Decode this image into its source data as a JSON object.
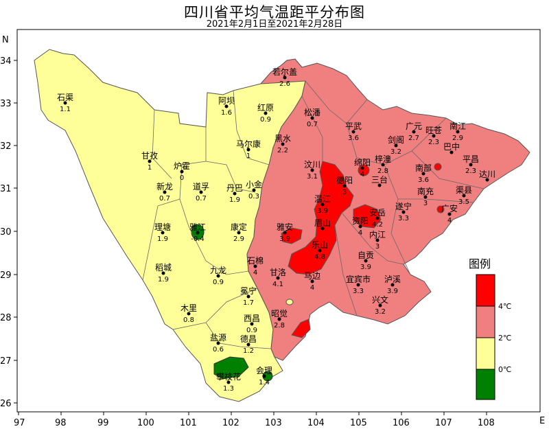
{
  "map": {
    "title": "四川省平均气温距平分布图",
    "subtitle": "2021年2月1日至2021年2月28日",
    "axis": {
      "lon_ticks": [
        "97",
        "98",
        "99",
        "100",
        "101",
        "102",
        "103",
        "104",
        "105",
        "106",
        "107",
        "108"
      ],
      "lat_ticks": [
        "34",
        "33",
        "32",
        "31",
        "30",
        "29",
        "28",
        "27",
        "26"
      ],
      "n_label": "N",
      "e_label": "E"
    },
    "legend": {
      "title": "图例",
      "labels": [
        "4℃",
        "2℃",
        "0℃"
      ],
      "colors": [
        "#ff0000",
        "#f08080",
        "#ffff99",
        "#008000"
      ]
    },
    "colors": {
      "yellow": "#ffff99",
      "pink": "#f08080",
      "red": "#ff0000",
      "green": "#008000"
    },
    "stations": [
      {
        "name": "若尔盖",
        "value": "2.6"
      },
      {
        "name": "石渠",
        "value": "1.1"
      },
      {
        "name": "阿坝",
        "value": "1.6"
      },
      {
        "name": "红原",
        "value": "0.9"
      },
      {
        "name": "松潘",
        "value": "0.7"
      },
      {
        "name": "平武",
        "value": "3.6"
      },
      {
        "name": "广元",
        "value": "2.7"
      },
      {
        "name": "旺苍",
        "value": "2.3"
      },
      {
        "name": "南江",
        "value": "2.9"
      },
      {
        "name": "马尔康",
        "value": "1"
      },
      {
        "name": "黑水",
        "value": "2.2"
      },
      {
        "name": "剑阁",
        "value": "3.2"
      },
      {
        "name": "巴中",
        "value": ""
      },
      {
        "name": "甘孜",
        "value": "1"
      },
      {
        "name": "炉霍",
        "value": "0"
      },
      {
        "name": "汶川",
        "value": "3.1"
      },
      {
        "name": "绵阳",
        "value": "4"
      },
      {
        "name": "梓潼",
        "value": "2.8"
      },
      {
        "name": "南部",
        "value": "3.6"
      },
      {
        "name": "平昌",
        "value": "2.3"
      },
      {
        "name": "达川",
        "value": ""
      },
      {
        "name": "新龙",
        "value": "0.7"
      },
      {
        "name": "道孚",
        "value": "0.7"
      },
      {
        "name": "丹巴",
        "value": "1.9"
      },
      {
        "name": "小金",
        "value": "0.3"
      },
      {
        "name": "德阳",
        "value": "3"
      },
      {
        "name": "三台",
        "value": ""
      },
      {
        "name": "南充",
        "value": "3"
      },
      {
        "name": "渠县",
        "value": "3.5"
      },
      {
        "name": "温江",
        "value": "3.9"
      },
      {
        "name": "遂宁",
        "value": "3.3"
      },
      {
        "name": "广安",
        "value": "4"
      },
      {
        "name": "理塘",
        "value": "1.9"
      },
      {
        "name": "雅江",
        "value": "-0.4"
      },
      {
        "name": "康定",
        "value": "2.9"
      },
      {
        "name": "雅安",
        "value": "3.9"
      },
      {
        "name": "眉山",
        "value": ""
      },
      {
        "name": "资阳",
        "value": "4"
      },
      {
        "name": "安岳",
        "value": "4.2"
      },
      {
        "name": "乐山",
        "value": "4.8"
      },
      {
        "name": "内江",
        "value": "3"
      },
      {
        "name": "石棉",
        "value": "4"
      },
      {
        "name": "稻城",
        "value": "1.9"
      },
      {
        "name": "九龙",
        "value": "0.9"
      },
      {
        "name": "甘洛",
        "value": "4.1"
      },
      {
        "name": "马边",
        "value": "4"
      },
      {
        "name": "自贡",
        "value": "3.9"
      },
      {
        "name": "宜宾市",
        "value": "3.3"
      },
      {
        "name": "泸溪",
        "value": "3.9"
      },
      {
        "name": "冕宁",
        "value": "1.7"
      },
      {
        "name": "木里",
        "value": "0.8"
      },
      {
        "name": "昭觉",
        "value": "2.8"
      },
      {
        "name": "兴文",
        "value": "3.2"
      },
      {
        "name": "西昌",
        "value": "0.9"
      },
      {
        "name": "盐源",
        "value": "0.6"
      },
      {
        "name": "德昌",
        "value": "1.2"
      },
      {
        "name": "攀枝花",
        "value": "1.3"
      },
      {
        "name": "会理",
        "value": "1.4"
      }
    ]
  }
}
